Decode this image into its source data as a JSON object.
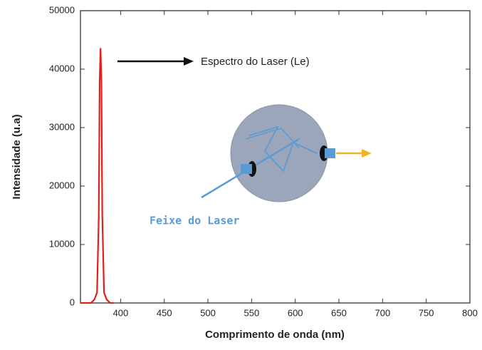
{
  "chart_data": {
    "type": "line",
    "xlabel": "Comprimento de onda (nm)",
    "ylabel": "Intensidade (u.a)",
    "annotations": [
      "Espectro do Laser (Le)",
      "Feixe do Laser"
    ],
    "x": [
      354,
      366,
      370,
      373,
      375,
      376,
      377,
      378,
      379,
      381,
      384,
      388,
      392
    ],
    "series": [
      {
        "name": "Le",
        "color": "#e0201b",
        "values": [
          0,
          0,
          600,
          1800,
          15000,
          38000,
          43600,
          38000,
          15000,
          1800,
          600,
          0,
          0
        ]
      }
    ],
    "xlim": [
      354,
      800
    ],
    "xticks": [
      400,
      450,
      500,
      550,
      600,
      650,
      700,
      750,
      800
    ],
    "ylim": [
      0,
      50000
    ],
    "yticks": [
      0,
      10000,
      20000,
      30000,
      40000,
      50000
    ]
  }
}
